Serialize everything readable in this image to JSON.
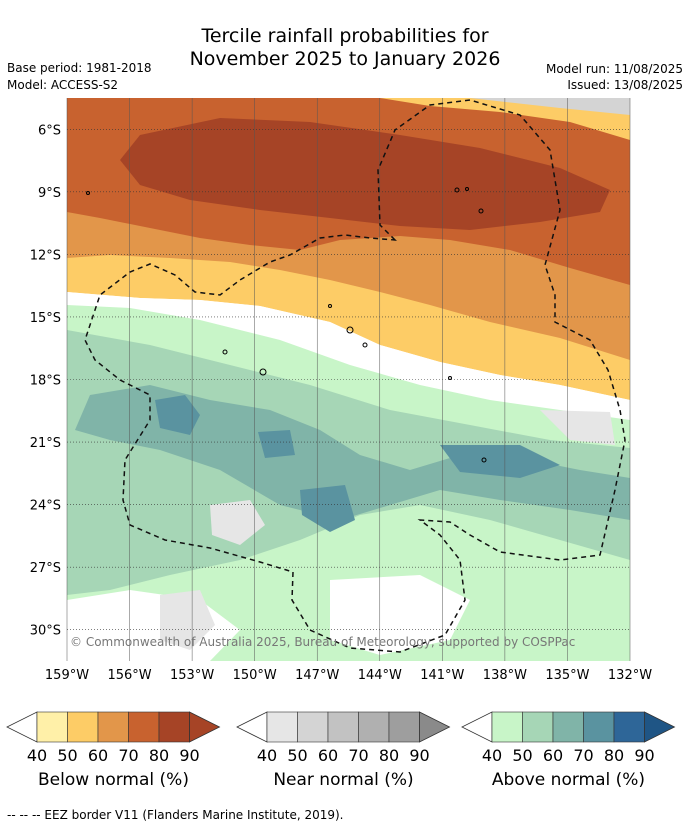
{
  "header": {
    "title_line1": "Tercile rainfall probabilities for",
    "title_line2": "November 2025 to January 2026",
    "base_period": "Base period: 1981-2018",
    "model": "Model: ACCESS-S2",
    "model_run": "Model run: 11/08/2025",
    "issued": "Issued: 13/08/2025"
  },
  "map": {
    "lat_labels": [
      "6°S",
      "9°S",
      "12°S",
      "15°S",
      "18°S",
      "21°S",
      "24°S",
      "27°S",
      "30°S"
    ],
    "lat_values": [
      -6,
      -9,
      -12,
      -15,
      -18,
      -21,
      -24,
      -27,
      -30
    ],
    "lon_labels": [
      "159°W",
      "156°W",
      "153°W",
      "150°W",
      "147°W",
      "144°W",
      "141°W",
      "138°W",
      "135°W",
      "132°W"
    ],
    "lon_values": [
      -159,
      -156,
      -153,
      -150,
      -147,
      -144,
      -141,
      -138,
      -135,
      -132
    ],
    "lon_range": [
      -159,
      -132
    ],
    "lat_range": [
      -4.5,
      -31.5
    ],
    "copyright": "© Commonwealth of Australia 2025, Bureau of Meteorology, supported by COSPPac"
  },
  "colorbars": [
    {
      "label": "Below normal (%)",
      "ticks": [
        "40",
        "50",
        "60",
        "70",
        "80",
        "90"
      ],
      "colors": [
        "#fff0a8",
        "#fdcc66",
        "#e2964a",
        "#c8622f",
        "#a64426",
        "#a64426"
      ]
    },
    {
      "label": "Near normal (%)",
      "ticks": [
        "40",
        "50",
        "60",
        "70",
        "80",
        "90"
      ],
      "colors": [
        "#e6e6e6",
        "#d4d4d4",
        "#c2c2c2",
        "#b0b0b0",
        "#9e9e9e",
        "#8a8a8a"
      ]
    },
    {
      "label": "Above normal (%)",
      "ticks": [
        "40",
        "50",
        "60",
        "70",
        "80",
        "90"
      ],
      "colors": [
        "#c8f5c8",
        "#a6d6b6",
        "#80b4a8",
        "#5a93a0",
        "#2e6698",
        "#1f5585"
      ]
    }
  ],
  "footer": {
    "legend_text": "--  --  -- EEZ border V11 (Flanders Marine Institute, 2019)."
  }
}
